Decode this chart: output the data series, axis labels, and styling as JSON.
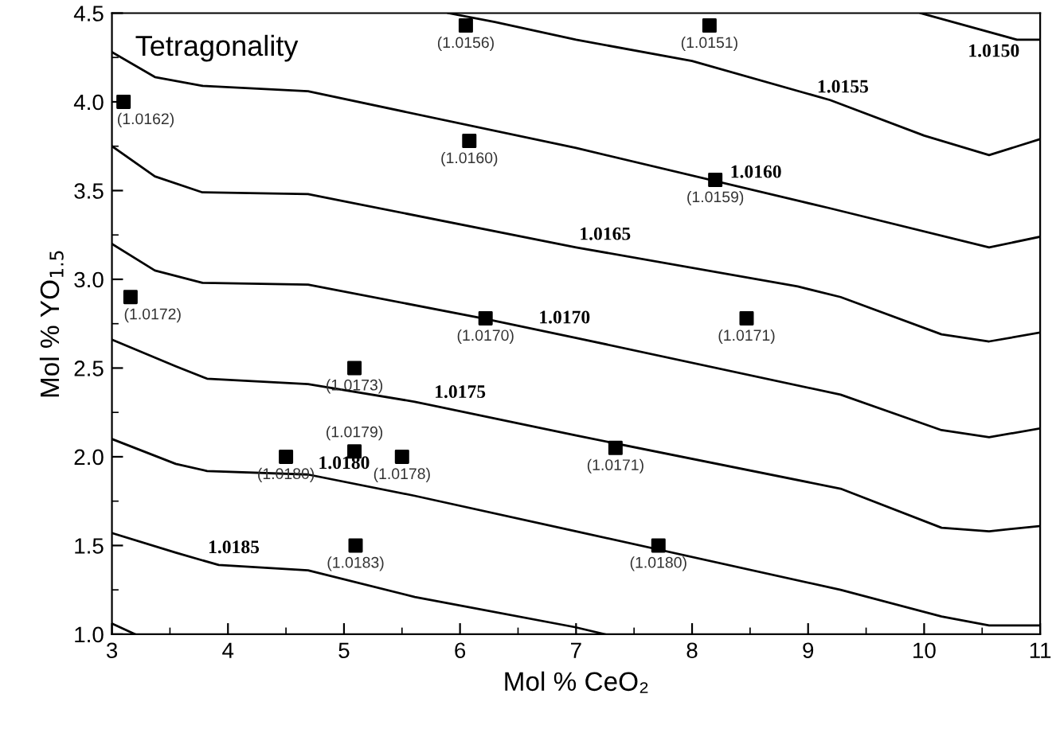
{
  "chart_data": {
    "type": "scatter",
    "title": "Tetragonality",
    "xlabel": "Mol % CeO₂",
    "ylabel": "Mol % YO$_{1.5}$",
    "xlim": [
      3,
      11
    ],
    "xticks": [
      3,
      4,
      5,
      6,
      7,
      8,
      9,
      10,
      11
    ],
    "ylim": [
      1.0,
      4.5
    ],
    "yticks": [
      {
        "value": 1.0,
        "label": "1.0"
      },
      {
        "value": 1.5,
        "label": "1.5"
      },
      {
        "value": 2.0,
        "label": "2.0"
      },
      {
        "value": 2.5,
        "label": "2.5"
      },
      {
        "value": 3.0,
        "label": "3.0"
      },
      {
        "value": 3.5,
        "label": "3.5"
      },
      {
        "value": 4.0,
        "label": "4.0"
      },
      {
        "value": 4.5,
        "label": "4.5"
      }
    ],
    "grid": false,
    "legend": false,
    "marker": "square",
    "series": [
      {
        "color": "#000000",
        "x": [
          3.1,
          6.05,
          8.15,
          6.08,
          8.2,
          3.16,
          6.22,
          8.47,
          5.09,
          4.5,
          5.09,
          5.5,
          7.34,
          5.1,
          7.71
        ],
        "values": [
          4.0,
          4.43,
          4.43,
          3.78,
          3.56,
          2.9,
          2.78,
          2.78,
          2.5,
          2.0,
          2.03,
          2.0,
          2.05,
          1.5,
          1.5
        ]
      },
      {
        "type": "line",
        "color": "#000000",
        "marker": "none",
        "x": [
          9.97,
          10.8,
          11
        ],
        "values": [
          4.5,
          4.35,
          4.35
        ]
      },
      {
        "type": "line",
        "color": "#000000",
        "marker": "none",
        "x": [
          5.9,
          6.3,
          7.0,
          8.0,
          9.19,
          10.0,
          10.56,
          11
        ],
        "values": [
          4.5,
          4.45,
          4.35,
          4.23,
          4.01,
          3.81,
          3.7,
          3.79
        ]
      },
      {
        "type": "line",
        "color": "#000000",
        "marker": "none",
        "x": [
          3.0,
          3.37,
          3.78,
          4.69,
          7.0,
          9.19,
          10.56,
          11
        ],
        "values": [
          4.28,
          4.14,
          4.09,
          4.06,
          3.74,
          3.4,
          3.18,
          3.24
        ]
      },
      {
        "type": "line",
        "color": "#000000",
        "marker": "none",
        "x": [
          3.0,
          3.37,
          3.78,
          4.69,
          7.0,
          8.91,
          9.28,
          10.15,
          10.56,
          11
        ],
        "values": [
          3.75,
          3.58,
          3.49,
          3.48,
          3.18,
          2.96,
          2.9,
          2.69,
          2.65,
          2.7
        ]
      },
      {
        "type": "line",
        "color": "#000000",
        "marker": "none",
        "x": [
          3.0,
          3.37,
          3.78,
          4.69,
          6.2,
          7.0,
          9.28,
          10.15,
          10.56,
          11
        ],
        "values": [
          3.2,
          3.05,
          2.98,
          2.97,
          2.78,
          2.67,
          2.35,
          2.15,
          2.11,
          2.16
        ]
      },
      {
        "type": "line",
        "color": "#000000",
        "marker": "none",
        "x": [
          3.0,
          3.55,
          3.82,
          4.69,
          5.61,
          7.0,
          9.28,
          10.15,
          10.56,
          11
        ],
        "values": [
          2.66,
          2.51,
          2.44,
          2.41,
          2.31,
          2.12,
          1.82,
          1.6,
          1.58,
          1.61
        ]
      },
      {
        "type": "line",
        "color": "#000000",
        "marker": "none",
        "x": [
          3.0,
          3.55,
          3.82,
          4.69,
          5.61,
          7.0,
          9.28,
          10.15,
          10.56,
          11
        ],
        "values": [
          2.1,
          1.96,
          1.92,
          1.9,
          1.78,
          1.58,
          1.25,
          1.1,
          1.05,
          1.05
        ]
      },
      {
        "type": "line",
        "color": "#000000",
        "marker": "none",
        "x": [
          3.0,
          3.55,
          3.92,
          4.69,
          5.61,
          6.99,
          7.25
        ],
        "values": [
          1.57,
          1.46,
          1.39,
          1.36,
          1.21,
          1.04,
          1.0
        ]
      },
      {
        "type": "line",
        "color": "#000000",
        "marker": "none",
        "x": [
          3.0,
          3.2
        ],
        "values": [
          1.06,
          1.0
        ]
      }
    ],
    "annotations": [
      {
        "text": "(1.0162)",
        "x": 3.1,
        "y": 4.0
      },
      {
        "text": "(1.0156)",
        "x": 6.05,
        "y": 4.43
      },
      {
        "text": "(1.0151)",
        "x": 8.15,
        "y": 4.43
      },
      {
        "text": "(1.0160)",
        "x": 6.08,
        "y": 3.78
      },
      {
        "text": "(1.0159)",
        "x": 8.2,
        "y": 3.56
      },
      {
        "text": "(1.0172)",
        "x": 3.16,
        "y": 2.9
      },
      {
        "text": "(1.0170)",
        "x": 6.22,
        "y": 2.78
      },
      {
        "text": "(1.0171)",
        "x": 8.47,
        "y": 2.78
      },
      {
        "text": "(1.0173)",
        "x": 5.09,
        "y": 2.5
      },
      {
        "text": "(1.0180)",
        "x": 4.5,
        "y": 2.0
      },
      {
        "text": "(1.0179)",
        "x": 5.09,
        "y": 2.03
      },
      {
        "text": "(1.0178)",
        "x": 5.5,
        "y": 2.0
      },
      {
        "text": "(1.0171)",
        "x": 7.34,
        "y": 2.05
      },
      {
        "text": "(1.0183)",
        "x": 5.1,
        "y": 1.5
      },
      {
        "text": "(1.0180)",
        "x": 7.71,
        "y": 1.5
      },
      {
        "text": "1.0150",
        "x": 10.6,
        "y": 4.39
      },
      {
        "text": "1.0155",
        "x": 9.3,
        "y": 3.98
      },
      {
        "text": "1.0160",
        "x": 8.55,
        "y": 3.5
      },
      {
        "text": "1.0165",
        "x": 7.25,
        "y": 3.15
      },
      {
        "text": "1.0170",
        "x": 6.9,
        "y": 2.68
      },
      {
        "text": "1.0175",
        "x": 6.0,
        "y": 2.26
      },
      {
        "text": "1.0180",
        "x": 5.0,
        "y": 1.86
      },
      {
        "text": "1.0185",
        "x": 4.05,
        "y": 1.385
      }
    ]
  }
}
